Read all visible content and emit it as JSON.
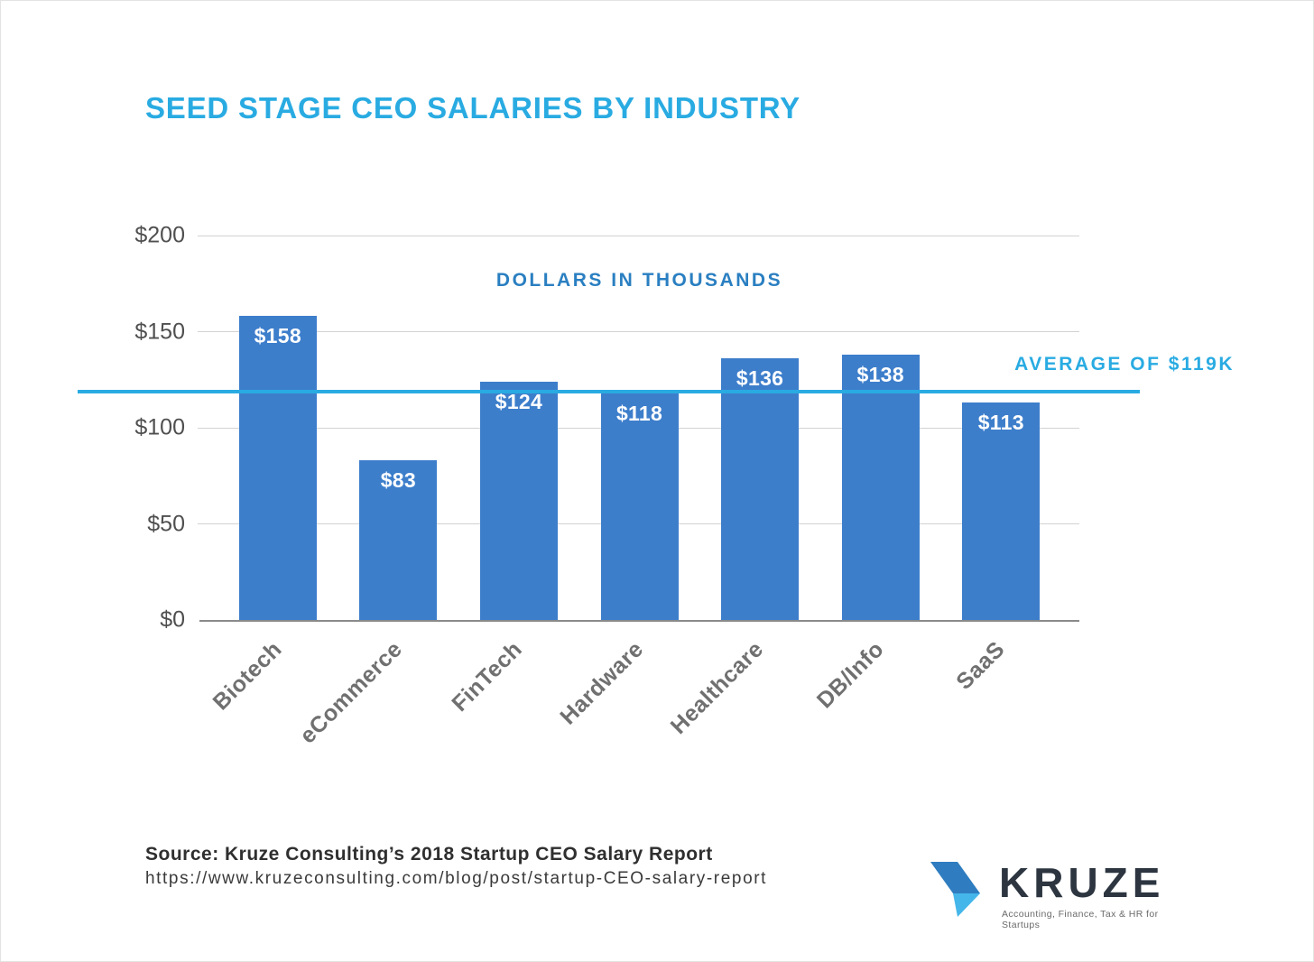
{
  "title": "SEED STAGE CEO SALARIES BY INDUSTRY",
  "colors": {
    "title": "#29abe2",
    "subtitle": "#2a7fc1",
    "bar": "#3d7ecb",
    "average": "#29abe2",
    "logo_dark_blue": "#2f7dc0",
    "logo_light_blue": "#45b6ea"
  },
  "chart_data": {
    "type": "bar",
    "title": "SEED STAGE CEO SALARIES BY INDUSTRY",
    "subtitle": "DOLLARS IN THOUSANDS",
    "categories": [
      "Biotech",
      "eCommerce",
      "FinTech",
      "Hardware",
      "Healthcare",
      "DB/Info",
      "SaaS"
    ],
    "values": [
      158,
      83,
      124,
      118,
      136,
      138,
      113
    ],
    "value_labels": [
      "$158",
      "$83",
      "$124",
      "$118",
      "$136",
      "$138",
      "$113"
    ],
    "ylim": [
      0,
      200
    ],
    "yticks": [
      0,
      50,
      100,
      150,
      200
    ],
    "ytick_labels": [
      "$0",
      "$50",
      "$100",
      "$150",
      "$200"
    ],
    "average_line": {
      "value": 119,
      "label": "AVERAGE OF $119K"
    },
    "grid": true,
    "legend": false
  },
  "footer": {
    "source": "Source: Kruze Consulting’s 2018 Startup CEO Salary Report",
    "url": "https://www.kruzeconsulting.com/blog/post/startup-CEO-salary-report"
  },
  "logo": {
    "name": "KRUZE",
    "tagline": "Accounting, Finance, Tax & HR for Startups"
  }
}
